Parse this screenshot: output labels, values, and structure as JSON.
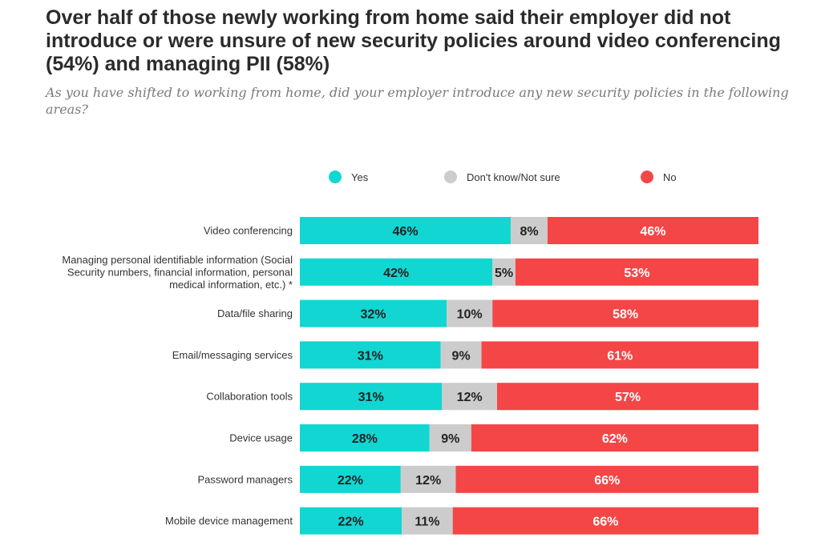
{
  "title": "Over half of those newly working from home said their employer did not introduce or were unsure of new security policies around video conferencing (54%) and managing PII (58%)",
  "subtitle": "As you have shifted to working from home, did your employer introduce any new security policies in the following areas?",
  "chart_data": {
    "type": "bar",
    "orientation": "horizontal",
    "stacked": true,
    "legend_position": "top",
    "categories": [
      [
        "Video conferencing"
      ],
      [
        "Managing personal identifiable information (Social",
        "Security numbers, financial information, personal",
        "medical information, etc.) *"
      ],
      [
        "Data/file sharing"
      ],
      [
        "Email/messaging services"
      ],
      [
        "Collaboration tools"
      ],
      [
        "Device usage"
      ],
      [
        "Password managers"
      ],
      [
        "Mobile device management"
      ]
    ],
    "series": [
      {
        "name": "Yes",
        "color": "#12d6d2",
        "label_color": "#222222",
        "values": [
          46,
          42,
          32,
          31,
          31,
          28,
          22,
          22
        ]
      },
      {
        "name": "Don't know/Not sure",
        "color": "#cccccc",
        "label_color": "#222222",
        "values": [
          8,
          5,
          10,
          9,
          12,
          9,
          12,
          11
        ]
      },
      {
        "name": "No",
        "color": "#f44646",
        "label_color": "#ffffff",
        "values": [
          46,
          53,
          58,
          61,
          57,
          62,
          66,
          66
        ]
      }
    ],
    "value_suffix": "%"
  }
}
